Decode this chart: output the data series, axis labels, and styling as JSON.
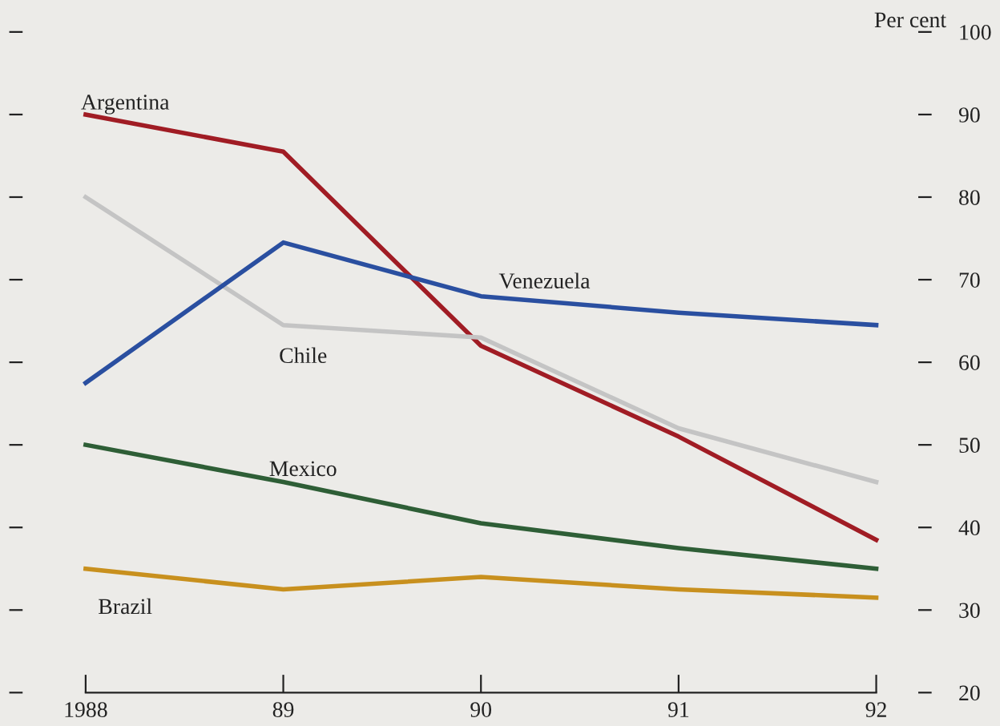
{
  "chart_data": {
    "type": "line",
    "ylabel": "Per cent",
    "categories": [
      "1988",
      "89",
      "90",
      "91",
      "92"
    ],
    "series": [
      {
        "name": "Argentina",
        "color": "#a01c24",
        "values": [
          90,
          85.5,
          62,
          51,
          38.5
        ]
      },
      {
        "name": "Chile",
        "color": "#c4c4c4",
        "values": [
          80,
          64.5,
          63,
          52,
          45.5
        ]
      },
      {
        "name": "Venezuela",
        "color": "#2a4fa0",
        "values": [
          57.5,
          74.5,
          68,
          66,
          64.5
        ]
      },
      {
        "name": "Mexico",
        "color": "#2e5e36",
        "values": [
          50,
          45.5,
          40.5,
          37.5,
          35
        ]
      },
      {
        "name": "Brazil",
        "color": "#c8901e",
        "values": [
          35,
          32.5,
          34,
          32.5,
          31.5
        ]
      }
    ],
    "ylim": [
      20,
      100
    ],
    "yticks": [
      20,
      30,
      40,
      50,
      60,
      70,
      80,
      90,
      100
    ],
    "grid": false,
    "legend": false,
    "marker": "none",
    "line_style": "solid"
  }
}
